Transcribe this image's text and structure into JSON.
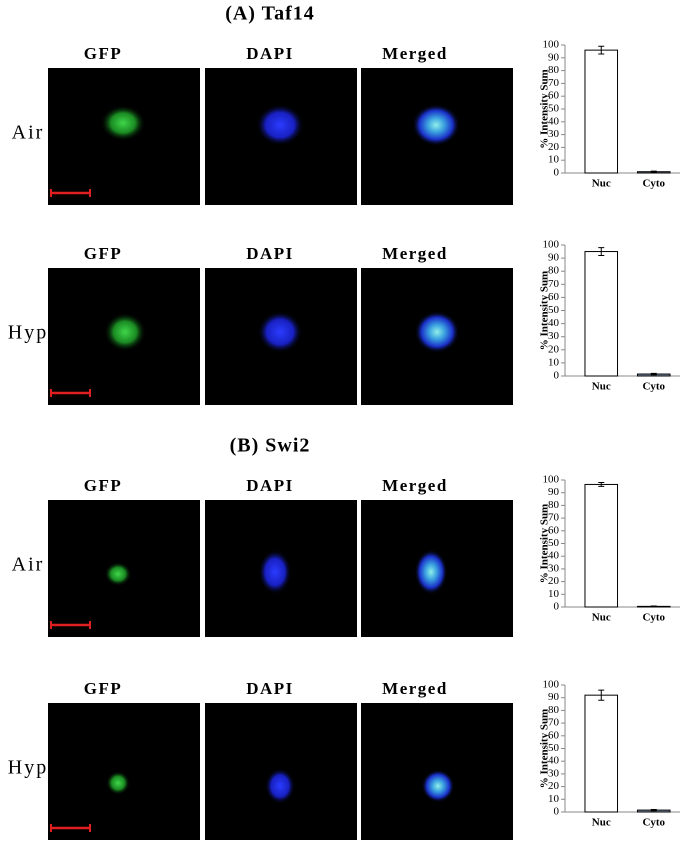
{
  "panels": [
    {
      "title": "(A) Taf14",
      "rows": [
        {
          "label": "Air",
          "columns": [
            "GFP",
            "DAPI",
            "Merged"
          ]
        },
        {
          "label": "Hyp",
          "columns": [
            "GFP",
            "DAPI",
            "Merged"
          ]
        }
      ]
    },
    {
      "title": "(B) Swi2",
      "rows": [
        {
          "label": "Air",
          "columns": [
            "GFP",
            "DAPI",
            "Merged"
          ]
        },
        {
          "label": "Hyp",
          "columns": [
            "GFP",
            "DAPI",
            "Merged"
          ]
        }
      ]
    }
  ],
  "chart_data": [
    {
      "type": "bar",
      "ylabel": "% Intensity Sum",
      "categories": [
        "Nuc",
        "Cyto"
      ],
      "values": [
        96,
        1
      ],
      "errors": [
        3,
        0.5
      ],
      "colors": [
        "#ffffff",
        "#8497b0"
      ],
      "ylim": [
        0,
        100
      ],
      "yticks": [
        0,
        10,
        20,
        30,
        40,
        50,
        60,
        70,
        80,
        90,
        100
      ]
    },
    {
      "type": "bar",
      "ylabel": "% Intensity Sum",
      "categories": [
        "Nuc",
        "Cyto"
      ],
      "values": [
        95,
        1.5
      ],
      "errors": [
        3,
        0.5
      ],
      "colors": [
        "#ffffff",
        "#8497b0"
      ],
      "ylim": [
        0,
        100
      ],
      "yticks": [
        0,
        10,
        20,
        30,
        40,
        50,
        60,
        70,
        80,
        90,
        100
      ]
    },
    {
      "type": "bar",
      "ylabel": "% Intensity Sum",
      "categories": [
        "Nuc",
        "Cyto"
      ],
      "values": [
        96.5,
        0.5
      ],
      "errors": [
        1.5,
        0.3
      ],
      "colors": [
        "#ffffff",
        "#8497b0"
      ],
      "ylim": [
        0,
        100
      ],
      "yticks": [
        0,
        10,
        20,
        30,
        40,
        50,
        60,
        70,
        80,
        90,
        100
      ]
    },
    {
      "type": "bar",
      "ylabel": "% Intensity Sum",
      "categories": [
        "Nuc",
        "Cyto"
      ],
      "values": [
        92,
        1.5
      ],
      "errors": [
        4,
        0.5
      ],
      "colors": [
        "#ffffff",
        "#8497b0"
      ],
      "ylim": [
        0,
        100
      ],
      "yticks": [
        0,
        10,
        20,
        30,
        40,
        50,
        60,
        70,
        80,
        90,
        100
      ]
    }
  ]
}
